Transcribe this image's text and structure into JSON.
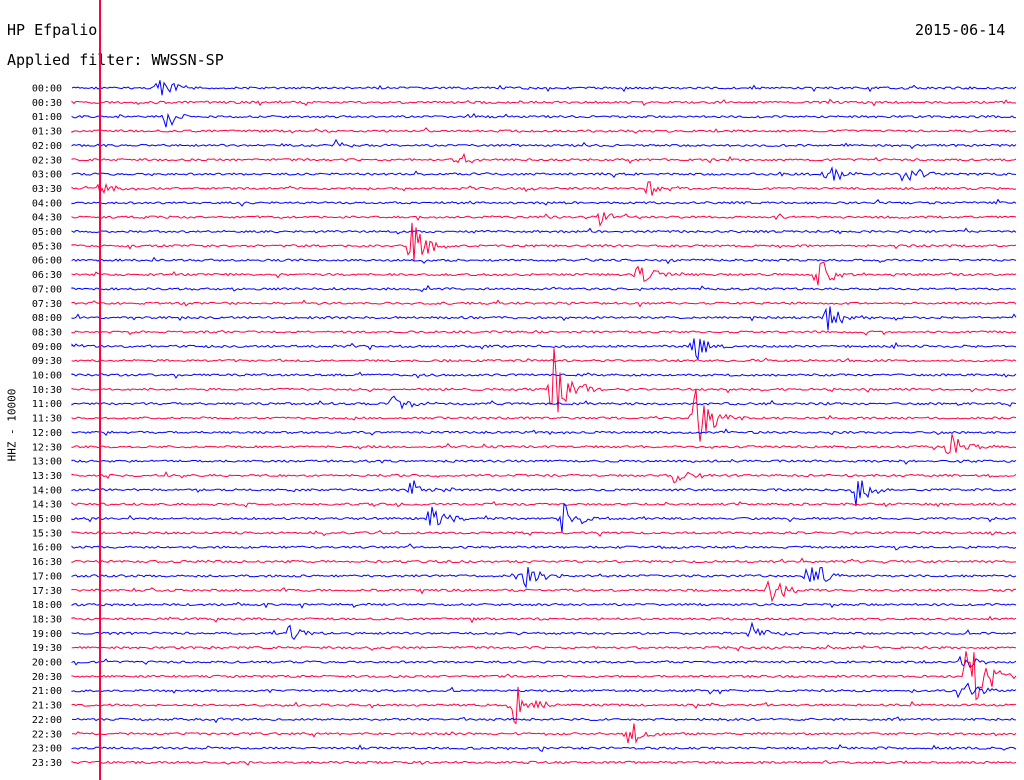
{
  "header": {
    "station": "HP Efpalio",
    "date": "2015-06-14",
    "filter": "Applied filter: WWSSN-SP"
  },
  "chart_data": {
    "type": "line",
    "title": "HP Efpalio",
    "date": "2015-06-14",
    "filter": "WWSSN-SP",
    "ylabel": "HHZ - 10000",
    "row_labels": [
      "00:00",
      "00:30",
      "01:00",
      "01:30",
      "02:00",
      "02:30",
      "03:00",
      "03:30",
      "04:00",
      "04:30",
      "05:00",
      "05:30",
      "06:00",
      "06:30",
      "07:00",
      "07:30",
      "08:00",
      "08:30",
      "09:00",
      "09:30",
      "10:00",
      "10:30",
      "11:00",
      "11:30",
      "12:00",
      "12:30",
      "13:00",
      "13:30",
      "14:00",
      "14:30",
      "15:00",
      "15:30",
      "16:00",
      "16:30",
      "17:00",
      "17:30",
      "18:00",
      "18:30",
      "19:00",
      "19:30",
      "20:00",
      "20:30",
      "21:00",
      "21:30",
      "22:00",
      "22:30",
      "23:00",
      "23:30"
    ],
    "colors": {
      "even": "#0000ff",
      "odd": "#ff0040",
      "marker": "#ff0040"
    },
    "events": [
      {
        "row": 0,
        "x": 0.09,
        "amp": 12
      },
      {
        "row": 2,
        "x": 0.1,
        "amp": 14
      },
      {
        "row": 4,
        "x": 0.28,
        "amp": 6
      },
      {
        "row": 5,
        "x": 0.41,
        "amp": 8
      },
      {
        "row": 6,
        "x": 0.8,
        "amp": 12
      },
      {
        "row": 6,
        "x": 0.88,
        "amp": 14
      },
      {
        "row": 7,
        "x": 0.03,
        "amp": 10
      },
      {
        "row": 7,
        "x": 0.61,
        "amp": 9
      },
      {
        "row": 9,
        "x": 0.56,
        "amp": 10
      },
      {
        "row": 11,
        "x": 0.36,
        "amp": 30
      },
      {
        "row": 13,
        "x": 0.6,
        "amp": 14
      },
      {
        "row": 13,
        "x": 0.79,
        "amp": 20
      },
      {
        "row": 16,
        "x": 0.8,
        "amp": 14
      },
      {
        "row": 18,
        "x": 0.66,
        "amp": 16
      },
      {
        "row": 21,
        "x": 0.51,
        "amp": 45
      },
      {
        "row": 22,
        "x": 0.34,
        "amp": 10
      },
      {
        "row": 23,
        "x": 0.66,
        "amp": 40
      },
      {
        "row": 25,
        "x": 0.93,
        "amp": 16
      },
      {
        "row": 27,
        "x": 0.64,
        "amp": 12
      },
      {
        "row": 28,
        "x": 0.36,
        "amp": 12
      },
      {
        "row": 28,
        "x": 0.83,
        "amp": 20
      },
      {
        "row": 30,
        "x": 0.38,
        "amp": 16
      },
      {
        "row": 30,
        "x": 0.52,
        "amp": 18
      },
      {
        "row": 34,
        "x": 0.48,
        "amp": 14
      },
      {
        "row": 34,
        "x": 0.78,
        "amp": 20
      },
      {
        "row": 35,
        "x": 0.74,
        "amp": 14
      },
      {
        "row": 38,
        "x": 0.23,
        "amp": 8
      },
      {
        "row": 38,
        "x": 0.72,
        "amp": 10
      },
      {
        "row": 40,
        "x": 0.94,
        "amp": 10
      },
      {
        "row": 41,
        "x": 0.95,
        "amp": 55
      },
      {
        "row": 42,
        "x": 0.94,
        "amp": 12
      },
      {
        "row": 43,
        "x": 0.47,
        "amp": 22
      },
      {
        "row": 45,
        "x": 0.59,
        "amp": 16
      }
    ]
  }
}
